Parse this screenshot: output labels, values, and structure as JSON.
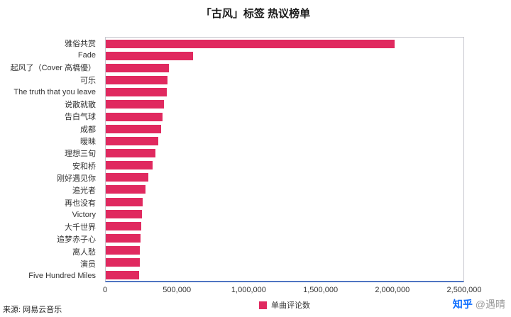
{
  "title": "「古风」标签 热议榜单",
  "source": "来源: 网易云音乐",
  "watermark": {
    "brand": "知乎",
    "author": "@遇晴"
  },
  "legend": {
    "label": "单曲评论数"
  },
  "colors": {
    "bar": "#e0295f",
    "axis": "#4f74c2"
  },
  "chart_data": {
    "type": "bar",
    "orientation": "horizontal",
    "title": "「古风」标签 热议榜单",
    "legend": [
      "单曲评论数"
    ],
    "categories": [
      "雅俗共赏",
      "Fade",
      "起风了（Cover 高橋優）",
      "可乐",
      "The truth that you leave",
      "说散就散",
      "告白气球",
      "成都",
      "暧昧",
      "理想三旬",
      "安和桥",
      "刚好遇见你",
      "追光者",
      "再也没有",
      "Victory",
      "大千世界",
      "追梦赤子心",
      "离人愁",
      "演员",
      "Five Hundred Miles"
    ],
    "values": [
      2020000,
      610000,
      440000,
      430000,
      425000,
      405000,
      395000,
      385000,
      365000,
      345000,
      325000,
      300000,
      280000,
      260000,
      255000,
      250000,
      245000,
      240000,
      240000,
      235000
    ],
    "xlabel": "",
    "ylabel": "",
    "xlim": [
      0,
      2500000
    ],
    "xticks": [
      0,
      500000,
      1000000,
      1500000,
      2000000,
      2500000
    ],
    "xtick_labels": [
      "0",
      "500,000",
      "1,000,000",
      "1,500,000",
      "2,000,000",
      "2,500,000"
    ],
    "grid": false,
    "legend_position": "bottom"
  }
}
